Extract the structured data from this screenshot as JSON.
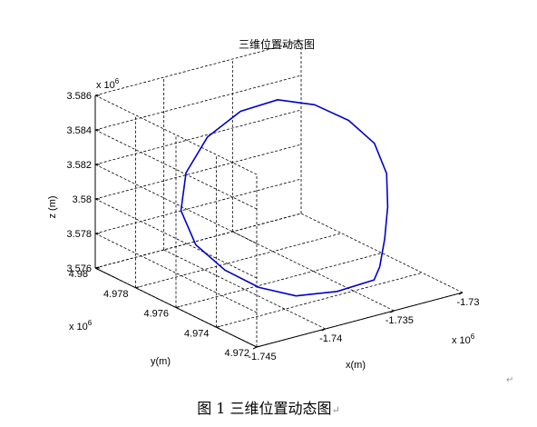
{
  "chart_data": {
    "type": "line3d",
    "title": "三维位置动态图",
    "xlabel": "x(m)",
    "ylabel": "y(m)",
    "zlabel": "z (m)",
    "x_multiplier": "x 10",
    "x_exponent": "6",
    "y_multiplier": "x 10",
    "y_exponent": "6",
    "z_multiplier": "x 10",
    "z_exponent": "6",
    "xlim": [
      -1.745,
      -1.73
    ],
    "ylim": [
      4.972,
      4.98
    ],
    "zlim": [
      3.576,
      3.586
    ],
    "x_ticks": [
      "-1.745",
      "-1.74",
      "-1.735",
      "-1.73"
    ],
    "y_ticks": [
      "4.972",
      "4.974",
      "4.976",
      "4.978",
      "4.98"
    ],
    "z_ticks": [
      "3.576",
      "3.578",
      "3.58",
      "3.582",
      "3.584",
      "3.586"
    ],
    "grid": true,
    "line_color": "#0000cc",
    "series": [
      {
        "description": "closed elliptical trajectory (values in units of 10^6 m)",
        "x": [
          -1.7331,
          -1.732,
          -1.7309,
          -1.7301,
          -1.7301,
          -1.7311,
          -1.7327,
          -1.7348,
          -1.7375,
          -1.7402,
          -1.7425,
          -1.7439,
          -1.744,
          -1.7429,
          -1.7413,
          -1.7392,
          -1.7365,
          -1.7338,
          -1.7331
        ],
        "y": [
          4.974,
          4.9745,
          4.9751,
          4.9757,
          4.9763,
          4.9769,
          4.9775,
          4.9779,
          4.9779,
          4.9777,
          4.9772,
          4.9765,
          4.9757,
          4.975,
          4.9744,
          4.974,
          4.9738,
          4.9738,
          4.974
        ],
        "z": [
          3.577,
          3.5781,
          3.5794,
          3.5808,
          3.5822,
          3.5834,
          3.5843,
          3.5848,
          3.5847,
          3.5839,
          3.5826,
          3.5811,
          3.5796,
          3.5783,
          3.5773,
          3.5766,
          3.5764,
          3.5765,
          3.577
        ]
      }
    ]
  },
  "caption": "图 1  三维位置动态图",
  "paragraph_mark": "↵",
  "return_mark": "↵"
}
